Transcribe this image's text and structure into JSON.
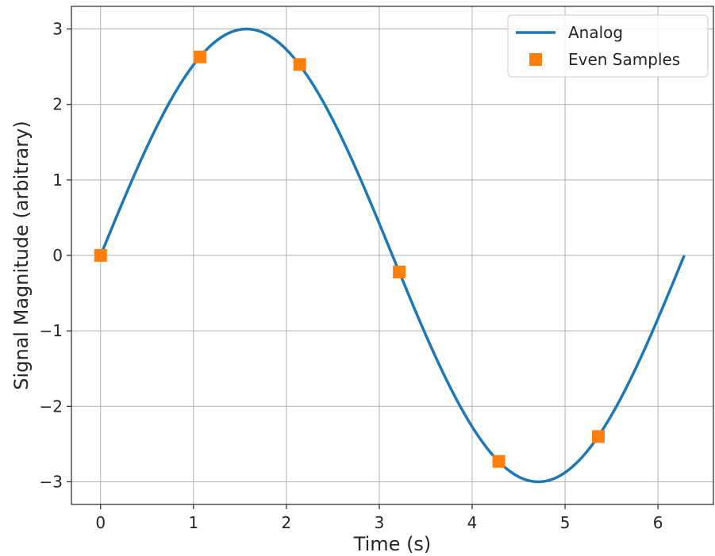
{
  "chart_data": {
    "type": "line",
    "xlabel": "Time (s)",
    "ylabel": "Signal Magnitude (arbitrary)",
    "xlim": [
      -0.314,
      6.597
    ],
    "ylim": [
      -3.3,
      3.3
    ],
    "xticks": [
      0,
      1,
      2,
      3,
      4,
      5,
      6
    ],
    "yticks": [
      -3,
      -2,
      -1,
      0,
      1,
      2,
      3
    ],
    "xtick_labels": [
      "0",
      "1",
      "2",
      "3",
      "4",
      "5",
      "6"
    ],
    "ytick_labels": [
      "−3",
      "−2",
      "−1",
      "0",
      "1",
      "2",
      "3"
    ],
    "grid": true,
    "legend_position": "top-right",
    "series": [
      {
        "name": "Analog",
        "kind": "line",
        "function": "3*sin(x)",
        "x_range": [
          0,
          6.2832
        ],
        "color": "#1f77b4"
      },
      {
        "name": "Even Samples",
        "kind": "scatter",
        "marker": "square",
        "x": [
          0,
          1.0717,
          2.1434,
          3.2151,
          4.2868,
          5.3585
        ],
        "y": [
          0,
          2.63,
          2.53,
          -0.22,
          -2.73,
          -2.4
        ],
        "color": "#ff7f0e"
      }
    ]
  }
}
